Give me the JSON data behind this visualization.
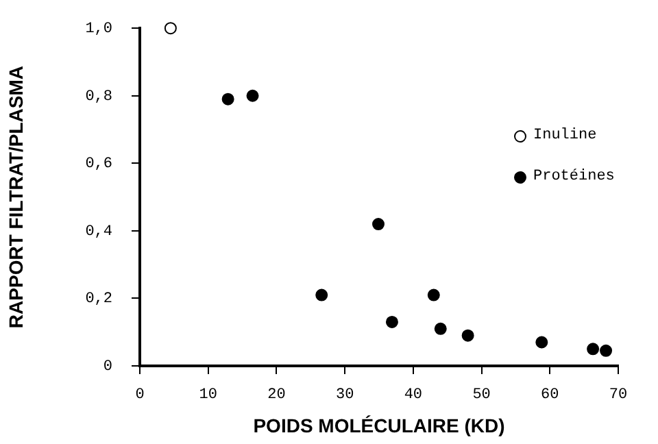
{
  "chart_data": {
    "type": "scatter",
    "xlabel": "POIDS MOLÉCULAIRE (KD)",
    "ylabel": "RAPPORT FILTRAT/PLASMA",
    "xlim": [
      0,
      70
    ],
    "xticks": [
      0,
      10,
      20,
      30,
      40,
      50,
      60,
      70
    ],
    "ylim": [
      0,
      1
    ],
    "yticks": [
      0,
      {
        "value": 0.2,
        "label": "0,2"
      },
      {
        "value": 0.4,
        "label": "0,4"
      },
      {
        "value": 0.6,
        "label": "0,6"
      },
      {
        "value": 0.8,
        "label": "0,8"
      },
      {
        "value": 1,
        "label": "1,0"
      }
    ],
    "grid": false,
    "legend": "right",
    "marker": "circle",
    "series": [
      {
        "name": "Inuline",
        "color": "#ffffff",
        "x": [
          4.5
        ],
        "values": [
          1.0
        ]
      },
      {
        "name": "Protéines",
        "color": "#000000",
        "x": [
          12.9,
          16.5,
          26.6,
          34.9,
          36.9,
          43,
          44,
          48,
          58.8,
          66.3,
          68.2
        ],
        "values": [
          0.79,
          0.8,
          0.21,
          0.42,
          0.13,
          0.21,
          0.11,
          0.09,
          0.07,
          0.05,
          0.045
        ]
      }
    ]
  }
}
